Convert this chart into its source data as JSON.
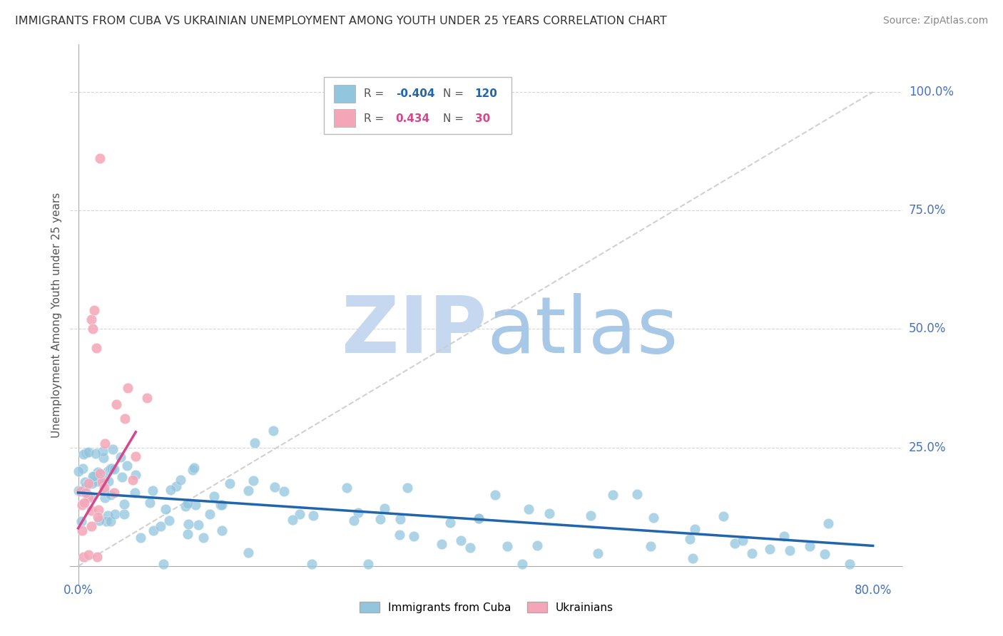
{
  "title": "IMMIGRANTS FROM CUBA VS UKRAINIAN UNEMPLOYMENT AMONG YOUTH UNDER 25 YEARS CORRELATION CHART",
  "source": "Source: ZipAtlas.com",
  "ylabel": "Unemployment Among Youth under 25 years",
  "xlim": [
    0.0,
    0.8
  ],
  "ylim": [
    0.0,
    1.0
  ],
  "blue_R": -0.404,
  "blue_N": 120,
  "pink_R": 0.434,
  "pink_N": 30,
  "blue_color": "#92c5de",
  "pink_color": "#f4a6b8",
  "blue_trend_color": "#2166ac",
  "pink_trend_color": "#d6478a",
  "watermark_zip_color": "#c5d8f0",
  "watermark_atlas_color": "#a8c8e8",
  "legend_label_blue": "Immigrants from Cuba",
  "legend_label_pink": "Ukrainians",
  "grid_color": "#cccccc",
  "axis_color": "#aaaaaa",
  "title_color": "#333333",
  "source_color": "#888888",
  "tick_label_color": "#4472c4",
  "ylabel_color": "#555555"
}
